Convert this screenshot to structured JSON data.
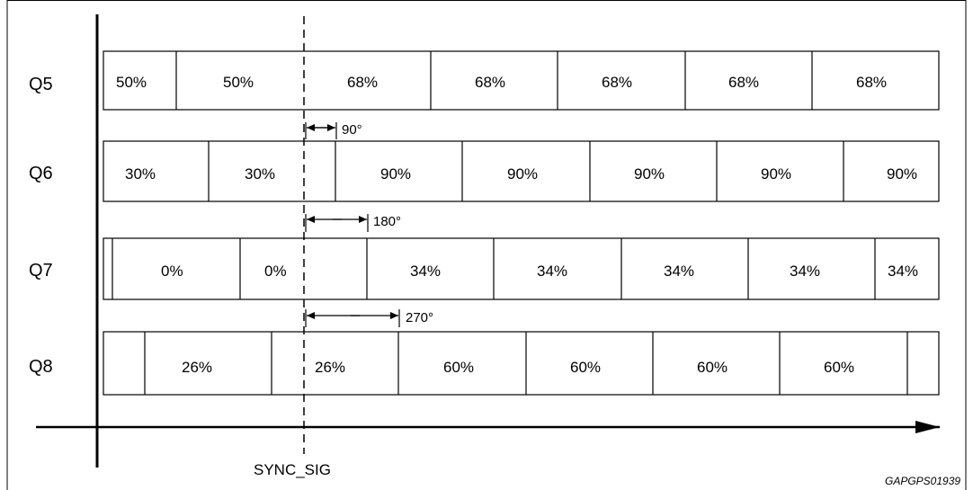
{
  "diagram": {
    "sync_label": "SYNC_SIG",
    "figure_code": "GAPGPS01939",
    "rows": [
      {
        "label": "Q5",
        "segments": [
          "50%",
          "50%",
          "68%",
          "68%",
          "68%",
          "68%",
          "68%"
        ],
        "phase_label": "90°"
      },
      {
        "label": "Q6",
        "segments": [
          "30%",
          "30%",
          "90%",
          "90%",
          "90%",
          "90%",
          "90%"
        ],
        "phase_label": "180°"
      },
      {
        "label": "Q7",
        "segments": [
          "0%",
          "0%",
          "34%",
          "34%",
          "34%",
          "34%",
          "34%"
        ],
        "phase_label": "270°"
      },
      {
        "label": "Q8",
        "segments": [
          "26%",
          "26%",
          "60%",
          "60%",
          "60%",
          "60%"
        ]
      }
    ]
  }
}
